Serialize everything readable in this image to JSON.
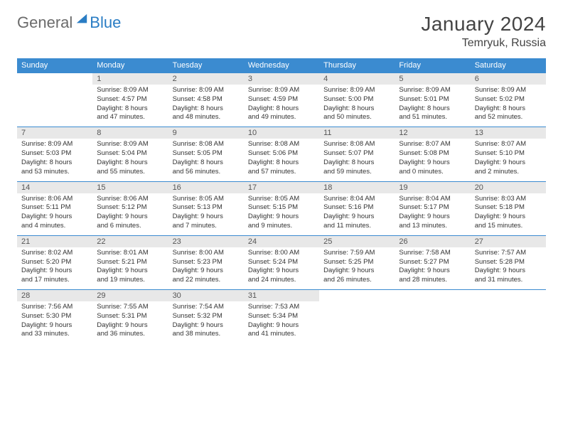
{
  "logo": {
    "text1": "General",
    "text2": "Blue"
  },
  "title": "January 2024",
  "location": "Temryuk, Russia",
  "day_headers": [
    "Sunday",
    "Monday",
    "Tuesday",
    "Wednesday",
    "Thursday",
    "Friday",
    "Saturday"
  ],
  "colors": {
    "header_bg": "#3b8bd0",
    "header_fg": "#ffffff",
    "daynum_bg": "#e8e8e8",
    "rule": "#3b8bd0",
    "logo_gray": "#6b6b6b",
    "logo_blue": "#2a7dc4",
    "title_color": "#444444"
  },
  "weeks": [
    [
      {
        "n": "",
        "lines": []
      },
      {
        "n": "1",
        "lines": [
          "Sunrise: 8:09 AM",
          "Sunset: 4:57 PM",
          "Daylight: 8 hours",
          "and 47 minutes."
        ]
      },
      {
        "n": "2",
        "lines": [
          "Sunrise: 8:09 AM",
          "Sunset: 4:58 PM",
          "Daylight: 8 hours",
          "and 48 minutes."
        ]
      },
      {
        "n": "3",
        "lines": [
          "Sunrise: 8:09 AM",
          "Sunset: 4:59 PM",
          "Daylight: 8 hours",
          "and 49 minutes."
        ]
      },
      {
        "n": "4",
        "lines": [
          "Sunrise: 8:09 AM",
          "Sunset: 5:00 PM",
          "Daylight: 8 hours",
          "and 50 minutes."
        ]
      },
      {
        "n": "5",
        "lines": [
          "Sunrise: 8:09 AM",
          "Sunset: 5:01 PM",
          "Daylight: 8 hours",
          "and 51 minutes."
        ]
      },
      {
        "n": "6",
        "lines": [
          "Sunrise: 8:09 AM",
          "Sunset: 5:02 PM",
          "Daylight: 8 hours",
          "and 52 minutes."
        ]
      }
    ],
    [
      {
        "n": "7",
        "lines": [
          "Sunrise: 8:09 AM",
          "Sunset: 5:03 PM",
          "Daylight: 8 hours",
          "and 53 minutes."
        ]
      },
      {
        "n": "8",
        "lines": [
          "Sunrise: 8:09 AM",
          "Sunset: 5:04 PM",
          "Daylight: 8 hours",
          "and 55 minutes."
        ]
      },
      {
        "n": "9",
        "lines": [
          "Sunrise: 8:08 AM",
          "Sunset: 5:05 PM",
          "Daylight: 8 hours",
          "and 56 minutes."
        ]
      },
      {
        "n": "10",
        "lines": [
          "Sunrise: 8:08 AM",
          "Sunset: 5:06 PM",
          "Daylight: 8 hours",
          "and 57 minutes."
        ]
      },
      {
        "n": "11",
        "lines": [
          "Sunrise: 8:08 AM",
          "Sunset: 5:07 PM",
          "Daylight: 8 hours",
          "and 59 minutes."
        ]
      },
      {
        "n": "12",
        "lines": [
          "Sunrise: 8:07 AM",
          "Sunset: 5:08 PM",
          "Daylight: 9 hours",
          "and 0 minutes."
        ]
      },
      {
        "n": "13",
        "lines": [
          "Sunrise: 8:07 AM",
          "Sunset: 5:10 PM",
          "Daylight: 9 hours",
          "and 2 minutes."
        ]
      }
    ],
    [
      {
        "n": "14",
        "lines": [
          "Sunrise: 8:06 AM",
          "Sunset: 5:11 PM",
          "Daylight: 9 hours",
          "and 4 minutes."
        ]
      },
      {
        "n": "15",
        "lines": [
          "Sunrise: 8:06 AM",
          "Sunset: 5:12 PM",
          "Daylight: 9 hours",
          "and 6 minutes."
        ]
      },
      {
        "n": "16",
        "lines": [
          "Sunrise: 8:05 AM",
          "Sunset: 5:13 PM",
          "Daylight: 9 hours",
          "and 7 minutes."
        ]
      },
      {
        "n": "17",
        "lines": [
          "Sunrise: 8:05 AM",
          "Sunset: 5:15 PM",
          "Daylight: 9 hours",
          "and 9 minutes."
        ]
      },
      {
        "n": "18",
        "lines": [
          "Sunrise: 8:04 AM",
          "Sunset: 5:16 PM",
          "Daylight: 9 hours",
          "and 11 minutes."
        ]
      },
      {
        "n": "19",
        "lines": [
          "Sunrise: 8:04 AM",
          "Sunset: 5:17 PM",
          "Daylight: 9 hours",
          "and 13 minutes."
        ]
      },
      {
        "n": "20",
        "lines": [
          "Sunrise: 8:03 AM",
          "Sunset: 5:18 PM",
          "Daylight: 9 hours",
          "and 15 minutes."
        ]
      }
    ],
    [
      {
        "n": "21",
        "lines": [
          "Sunrise: 8:02 AM",
          "Sunset: 5:20 PM",
          "Daylight: 9 hours",
          "and 17 minutes."
        ]
      },
      {
        "n": "22",
        "lines": [
          "Sunrise: 8:01 AM",
          "Sunset: 5:21 PM",
          "Daylight: 9 hours",
          "and 19 minutes."
        ]
      },
      {
        "n": "23",
        "lines": [
          "Sunrise: 8:00 AM",
          "Sunset: 5:23 PM",
          "Daylight: 9 hours",
          "and 22 minutes."
        ]
      },
      {
        "n": "24",
        "lines": [
          "Sunrise: 8:00 AM",
          "Sunset: 5:24 PM",
          "Daylight: 9 hours",
          "and 24 minutes."
        ]
      },
      {
        "n": "25",
        "lines": [
          "Sunrise: 7:59 AM",
          "Sunset: 5:25 PM",
          "Daylight: 9 hours",
          "and 26 minutes."
        ]
      },
      {
        "n": "26",
        "lines": [
          "Sunrise: 7:58 AM",
          "Sunset: 5:27 PM",
          "Daylight: 9 hours",
          "and 28 minutes."
        ]
      },
      {
        "n": "27",
        "lines": [
          "Sunrise: 7:57 AM",
          "Sunset: 5:28 PM",
          "Daylight: 9 hours",
          "and 31 minutes."
        ]
      }
    ],
    [
      {
        "n": "28",
        "lines": [
          "Sunrise: 7:56 AM",
          "Sunset: 5:30 PM",
          "Daylight: 9 hours",
          "and 33 minutes."
        ]
      },
      {
        "n": "29",
        "lines": [
          "Sunrise: 7:55 AM",
          "Sunset: 5:31 PM",
          "Daylight: 9 hours",
          "and 36 minutes."
        ]
      },
      {
        "n": "30",
        "lines": [
          "Sunrise: 7:54 AM",
          "Sunset: 5:32 PM",
          "Daylight: 9 hours",
          "and 38 minutes."
        ]
      },
      {
        "n": "31",
        "lines": [
          "Sunrise: 7:53 AM",
          "Sunset: 5:34 PM",
          "Daylight: 9 hours",
          "and 41 minutes."
        ]
      },
      {
        "n": "",
        "lines": []
      },
      {
        "n": "",
        "lines": []
      },
      {
        "n": "",
        "lines": []
      }
    ]
  ]
}
